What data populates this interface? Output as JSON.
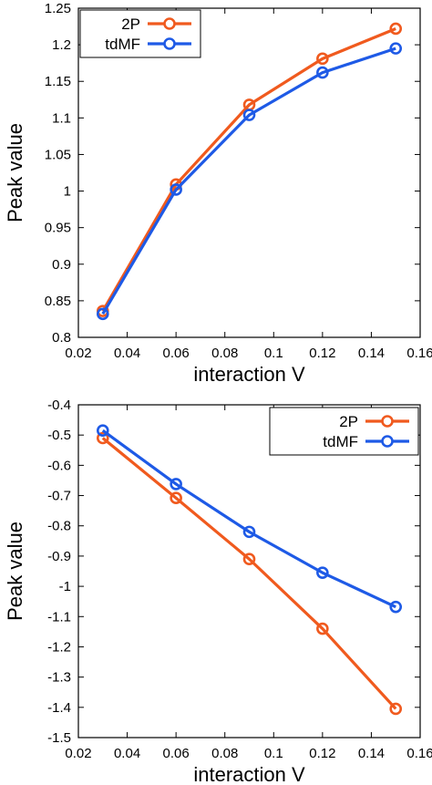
{
  "chart_data": [
    {
      "type": "line",
      "xlabel": "interaction V",
      "ylabel": "Peak value",
      "xlim": [
        0.02,
        0.16
      ],
      "ylim": [
        0.8,
        1.25
      ],
      "xticks": [
        "0.02",
        "0.04",
        "0.06",
        "0.08",
        "0.1",
        "0.12",
        "0.14",
        "0.16"
      ],
      "yticks": [
        "0.8",
        "0.85",
        "0.9",
        "0.95",
        "1",
        "1.05",
        "1.1",
        "1.15",
        "1.2",
        "1.25"
      ],
      "legend": "top-left",
      "grid": false,
      "x": [
        0.03,
        0.06,
        0.09,
        0.12,
        0.15
      ],
      "series": [
        {
          "name": "2P",
          "color": "#f05a1e",
          "values": [
            0.836,
            1.009,
            1.118,
            1.181,
            1.222
          ]
        },
        {
          "name": "tdMF",
          "color": "#1e5ae6",
          "values": [
            0.832,
            1.002,
            1.104,
            1.162,
            1.195
          ]
        }
      ]
    },
    {
      "type": "line",
      "xlabel": "interaction V",
      "ylabel": "Peak value",
      "xlim": [
        0.02,
        0.16
      ],
      "ylim": [
        -1.5,
        -0.4
      ],
      "xticks": [
        "0.02",
        "0.04",
        "0.06",
        "0.08",
        "0.1",
        "0.12",
        "0.14",
        "0.16"
      ],
      "yticks": [
        "-1.5",
        "-1.4",
        "-1.3",
        "-1.2",
        "-1.1",
        "-1",
        "-0.9",
        "-0.8",
        "-0.7",
        "-0.6",
        "-0.5",
        "-0.4"
      ],
      "legend": "top-right",
      "grid": false,
      "x": [
        0.03,
        0.06,
        0.09,
        0.12,
        0.15
      ],
      "series": [
        {
          "name": "2P",
          "color": "#f05a1e",
          "values": [
            -0.51,
            -0.708,
            -0.91,
            -1.14,
            -1.405
          ]
        },
        {
          "name": "tdMF",
          "color": "#1e5ae6",
          "values": [
            -0.485,
            -0.662,
            -0.82,
            -0.955,
            -1.068
          ]
        }
      ]
    }
  ]
}
